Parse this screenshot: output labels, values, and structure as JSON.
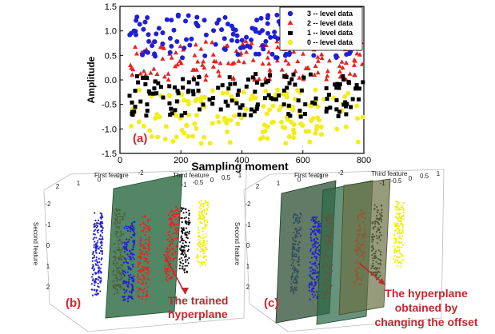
{
  "chart_data": [
    {
      "panel": "(a)",
      "type": "scatter",
      "xlabel": "Sampling moment",
      "ylabel": "Amplitude",
      "xlim": [
        0,
        800
      ],
      "ylim": [
        -1.5,
        1.5
      ],
      "xticks": [
        0,
        200,
        400,
        600,
        800
      ],
      "yticks": [
        -1.5,
        -1.0,
        -0.5,
        0.0,
        0.5,
        1.0,
        1.5
      ],
      "grid": false,
      "legend_position": "top-right",
      "series": [
        {
          "name": "3 -- level data",
          "color": "#1f1fd6",
          "marker": "circle",
          "y_range": [
            0.45,
            1.35
          ]
        },
        {
          "name": "2 -- level data",
          "color": "#e8231e",
          "marker": "triangle",
          "y_range": [
            0.0,
            0.8
          ]
        },
        {
          "name": "1 -- level data",
          "color": "#000000",
          "marker": "square",
          "y_range": [
            -0.75,
            0.15
          ]
        },
        {
          "name": "0 -- level data",
          "color": "#f2ee1a",
          "marker": "circle",
          "y_range": [
            -1.3,
            -0.2
          ]
        }
      ]
    },
    {
      "panel": "(b)",
      "type": "scatter",
      "labels": {
        "x": "First feature",
        "y": "Second feature",
        "z": "Third feature"
      },
      "annotation": [
        "The trained",
        "hyperplane"
      ]
    },
    {
      "panel": "(c)",
      "type": "scatter",
      "labels": {
        "x": "First feature",
        "y": "Second feature",
        "z": "Third feature"
      },
      "annotation": [
        "The hyperplane",
        "obtained by",
        "changing the offset"
      ]
    }
  ],
  "ticks3d": {
    "b_top": [
      "2",
      "1",
      "0",
      "-1",
      "-2"
    ],
    "b_side": [
      "-2",
      "-1",
      "0",
      "1",
      "2"
    ],
    "b_z": [
      "-1",
      "-0.5",
      "0",
      "0.5",
      "1"
    ],
    "c_top": [
      "2",
      "1",
      "0",
      "-1",
      "-2"
    ],
    "c_side": [
      "-2",
      "-1",
      "0",
      "1",
      "2"
    ],
    "c_z": [
      "-1",
      "-0.5",
      "0",
      "0.5",
      "1"
    ]
  }
}
